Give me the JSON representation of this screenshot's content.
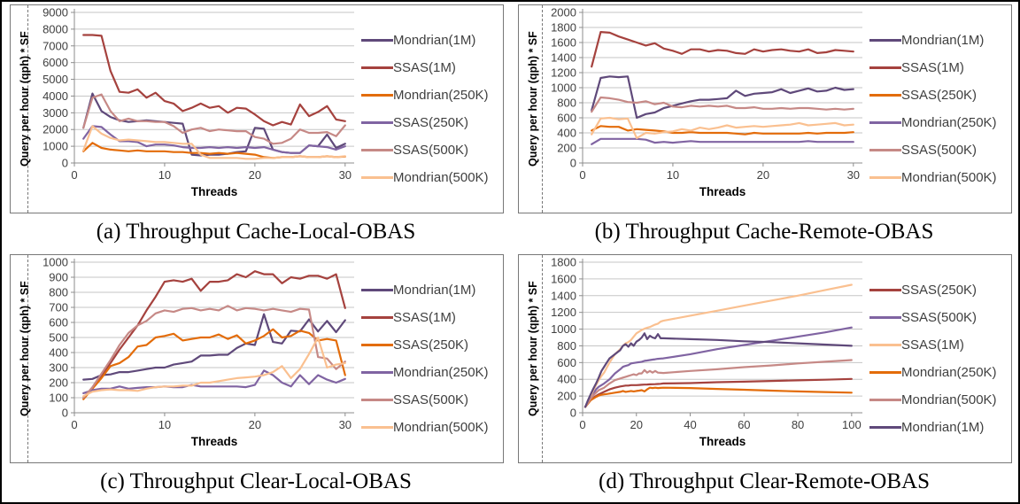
{
  "figure": {
    "xlabel": "Threads",
    "ylabel": "Query per hour (qph) * SF",
    "colors": {
      "dark_purple": "#5F497A",
      "dark_red": "#A5423E",
      "orange": "#E36C0A",
      "medium_purple": "#8064A2",
      "rose": "#C68986",
      "peach": "#FAC090"
    }
  },
  "chart_data": [
    {
      "type": "line",
      "caption": "(a) Throughput Cache-Local-OBAS",
      "xlabel": "Threads",
      "ylabel": "Query per hour (qph) * SF",
      "ylim": [
        0,
        9000
      ],
      "ystep": 1000,
      "xlim": [
        0,
        31
      ],
      "xticks": [
        0,
        10,
        20,
        30
      ],
      "grid": true,
      "legend_position": "right",
      "x": [
        1,
        2,
        3,
        4,
        5,
        6,
        7,
        8,
        9,
        10,
        11,
        12,
        13,
        14,
        15,
        16,
        17,
        18,
        19,
        20,
        21,
        22,
        23,
        24,
        25,
        26,
        27,
        28,
        29,
        30
      ],
      "series": [
        {
          "name": "Mondrian(1M)",
          "color": "#5F497A",
          "values": [
            2100,
            4150,
            3100,
            2750,
            2550,
            2450,
            2500,
            2550,
            2500,
            2450,
            2400,
            2350,
            500,
            450,
            500,
            500,
            550,
            650,
            700,
            2100,
            2050,
            800,
            650,
            600,
            600,
            1050,
            1000,
            1700,
            900,
            1150
          ]
        },
        {
          "name": "SSAS(1M)",
          "color": "#A5423E",
          "values": [
            7650,
            7650,
            7600,
            5500,
            4250,
            4200,
            4400,
            3900,
            4200,
            3700,
            3550,
            3100,
            3300,
            3550,
            3300,
            3400,
            3000,
            3300,
            3250,
            2900,
            2500,
            2250,
            2450,
            2300,
            3500,
            2800,
            3050,
            3400,
            2600,
            2500
          ]
        },
        {
          "name": "Mondrian(250K)",
          "color": "#E36C0A",
          "values": [
            700,
            1200,
            900,
            800,
            750,
            700,
            750,
            700,
            700,
            700,
            650,
            650,
            600,
            600,
            550,
            600,
            550,
            600,
            550,
            500,
            350,
            300,
            350,
            350,
            400,
            350,
            350,
            400,
            350,
            380
          ]
        },
        {
          "name": "SSAS(250K)",
          "color": "#8064A2",
          "values": [
            1450,
            2200,
            2150,
            1700,
            1300,
            1300,
            1250,
            1000,
            1100,
            1100,
            1050,
            950,
            900,
            900,
            950,
            900,
            950,
            900,
            950,
            900,
            950,
            800,
            650,
            600,
            600,
            1050,
            1000,
            950,
            800,
            1000
          ]
        },
        {
          "name": "SSAS(500K)",
          "color": "#C68986",
          "values": [
            2100,
            3900,
            4100,
            3100,
            2500,
            2650,
            2500,
            2500,
            2450,
            2450,
            2200,
            1800,
            2000,
            2100,
            1900,
            2000,
            1950,
            1900,
            1900,
            1550,
            1450,
            1150,
            1200,
            1450,
            2000,
            1800,
            1800,
            1850,
            1600,
            2250
          ]
        },
        {
          "name": "Mondrian(500K)",
          "color": "#FAC090",
          "values": [
            750,
            2200,
            1750,
            1500,
            1350,
            1400,
            1350,
            1300,
            1250,
            1250,
            1200,
            1150,
            1150,
            500,
            300,
            300,
            300,
            300,
            250,
            250,
            300,
            300,
            350,
            350,
            400,
            350,
            350,
            400,
            350,
            400
          ]
        }
      ]
    },
    {
      "type": "line",
      "caption": "(b) Throughput Cache-Remote-OBAS",
      "xlabel": "Threads",
      "ylabel": "Query per hour (qph) * SF",
      "ylim": [
        0,
        2000
      ],
      "ystep": 200,
      "xlim": [
        0,
        31
      ],
      "xticks": [
        0,
        10,
        20,
        30
      ],
      "grid": true,
      "legend_position": "right",
      "x": [
        1,
        2,
        3,
        4,
        5,
        6,
        7,
        8,
        9,
        10,
        11,
        12,
        13,
        14,
        15,
        16,
        17,
        18,
        19,
        20,
        21,
        22,
        23,
        24,
        25,
        26,
        27,
        28,
        29,
        30
      ],
      "series": [
        {
          "name": "Mondrian(1M)",
          "color": "#5F497A",
          "values": [
            700,
            1130,
            1150,
            1140,
            1150,
            600,
            650,
            670,
            730,
            760,
            790,
            820,
            840,
            840,
            850,
            860,
            960,
            890,
            920,
            930,
            940,
            980,
            930,
            960,
            990,
            950,
            960,
            1000,
            970,
            980
          ]
        },
        {
          "name": "SSAS(1M)",
          "color": "#A5423E",
          "values": [
            1280,
            1740,
            1730,
            1680,
            1640,
            1600,
            1560,
            1590,
            1520,
            1490,
            1450,
            1510,
            1510,
            1480,
            1500,
            1490,
            1460,
            1450,
            1510,
            1480,
            1500,
            1510,
            1490,
            1480,
            1510,
            1460,
            1470,
            1500,
            1490,
            1480
          ]
        },
        {
          "name": "SSAS(250K)",
          "color": "#E36C0A",
          "values": [
            430,
            490,
            480,
            480,
            430,
            450,
            440,
            430,
            420,
            400,
            400,
            410,
            400,
            400,
            400,
            400,
            390,
            380,
            400,
            390,
            390,
            390,
            390,
            390,
            400,
            390,
            400,
            400,
            400,
            410
          ]
        },
        {
          "name": "Mondrian(250K)",
          "color": "#8064A2",
          "values": [
            250,
            320,
            320,
            320,
            320,
            320,
            310,
            270,
            280,
            270,
            280,
            290,
            280,
            280,
            280,
            280,
            280,
            280,
            280,
            280,
            280,
            280,
            280,
            280,
            290,
            280,
            280,
            280,
            280,
            280
          ]
        },
        {
          "name": "SSAS(500K)",
          "color": "#C68986",
          "values": [
            680,
            870,
            860,
            840,
            810,
            800,
            820,
            780,
            800,
            750,
            740,
            760,
            750,
            760,
            750,
            760,
            730,
            730,
            740,
            720,
            720,
            730,
            720,
            730,
            730,
            720,
            710,
            720,
            710,
            720
          ]
        },
        {
          "name": "Mondrian(500K)",
          "color": "#FAC090",
          "values": [
            380,
            590,
            600,
            580,
            590,
            330,
            400,
            390,
            410,
            420,
            450,
            430,
            470,
            450,
            470,
            500,
            470,
            480,
            490,
            480,
            490,
            500,
            510,
            530,
            500,
            510,
            520,
            530,
            500,
            510
          ]
        }
      ]
    },
    {
      "type": "line",
      "caption": "(c) Throughput Clear-Local-OBAS",
      "xlabel": "Threads",
      "ylabel": "Query per hour (qph) * SF",
      "ylim": [
        0,
        1000
      ],
      "ystep": 100,
      "xlim": [
        0,
        31
      ],
      "xticks": [
        0,
        10,
        20,
        30
      ],
      "grid": true,
      "legend_position": "right",
      "x": [
        1,
        2,
        3,
        4,
        5,
        6,
        7,
        8,
        9,
        10,
        11,
        12,
        13,
        14,
        15,
        16,
        17,
        18,
        19,
        20,
        21,
        22,
        23,
        24,
        25,
        26,
        27,
        28,
        29,
        30
      ],
      "series": [
        {
          "name": "Mondrian(1M)",
          "color": "#5F497A",
          "values": [
            220,
            225,
            250,
            255,
            270,
            270,
            280,
            290,
            300,
            300,
            320,
            330,
            340,
            380,
            380,
            385,
            385,
            430,
            460,
            450,
            655,
            470,
            460,
            545,
            540,
            620,
            540,
            610,
            535,
            615
          ]
        },
        {
          "name": "SSAS(1M)",
          "color": "#A5423E",
          "values": [
            100,
            160,
            250,
            330,
            420,
            500,
            580,
            680,
            770,
            870,
            880,
            870,
            890,
            810,
            870,
            870,
            880,
            920,
            900,
            940,
            920,
            920,
            860,
            900,
            890,
            910,
            910,
            890,
            920,
            695
          ]
        },
        {
          "name": "SSAS(250K)",
          "color": "#E36C0A",
          "values": [
            90,
            160,
            230,
            310,
            330,
            370,
            440,
            450,
            500,
            510,
            525,
            480,
            490,
            500,
            500,
            520,
            490,
            515,
            460,
            480,
            510,
            555,
            500,
            510,
            545,
            530,
            480,
            490,
            480,
            250
          ]
        },
        {
          "name": "Mondrian(250K)",
          "color": "#8064A2",
          "values": [
            130,
            150,
            160,
            160,
            175,
            160,
            165,
            170,
            170,
            175,
            170,
            170,
            185,
            175,
            175,
            175,
            175,
            175,
            170,
            185,
            280,
            250,
            200,
            175,
            250,
            190,
            250,
            220,
            200,
            225
          ]
        },
        {
          "name": "SSAS(500K)",
          "color": "#C68986",
          "values": [
            100,
            170,
            260,
            350,
            450,
            530,
            580,
            610,
            660,
            680,
            670,
            690,
            695,
            680,
            690,
            680,
            710,
            680,
            695,
            690,
            680,
            690,
            680,
            670,
            690,
            685,
            370,
            360,
            290,
            340
          ]
        },
        {
          "name": "Mondrian(500K)",
          "color": "#FAC090",
          "values": [
            110,
            140,
            150,
            155,
            150,
            150,
            145,
            160,
            170,
            175,
            175,
            180,
            180,
            200,
            200,
            210,
            220,
            230,
            235,
            240,
            250,
            270,
            310,
            230,
            290,
            390,
            500,
            300,
            320,
            330
          ]
        }
      ]
    },
    {
      "type": "line",
      "caption": "(d) Throughput Clear-Remote-OBAS",
      "xlabel": "Threads",
      "ylabel": "Query per hour (qph) * SF",
      "ylim": [
        0,
        1800
      ],
      "ystep": 200,
      "xlim": [
        0,
        104
      ],
      "xticks": [
        0,
        20,
        40,
        60,
        80,
        100
      ],
      "grid": true,
      "legend_position": "right",
      "x": [
        1,
        2,
        3,
        4,
        5,
        6,
        7,
        8,
        9,
        10,
        12,
        14,
        15,
        16,
        17,
        18,
        19,
        20,
        21,
        22,
        23,
        24,
        25,
        26,
        27,
        28,
        29,
        30,
        40,
        50,
        60,
        70,
        80,
        90,
        100
      ],
      "series": [
        {
          "name": "SSAS(250K)",
          "color": "#A5423E",
          "values": [
            70,
            110,
            150,
            180,
            200,
            220,
            235,
            250,
            265,
            280,
            300,
            315,
            320,
            325,
            325,
            330,
            330,
            330,
            332,
            335,
            337,
            338,
            340,
            341,
            342,
            344,
            346,
            350,
            355,
            365,
            372,
            380,
            387,
            395,
            405
          ]
        },
        {
          "name": "SSAS(500K)",
          "color": "#8064A2",
          "values": [
            70,
            130,
            180,
            230,
            280,
            310,
            330,
            350,
            375,
            400,
            470,
            520,
            550,
            560,
            570,
            590,
            595,
            600,
            605,
            610,
            620,
            625,
            630,
            635,
            640,
            645,
            648,
            650,
            700,
            760,
            810,
            860,
            910,
            960,
            1020
          ]
        },
        {
          "name": "SSAS(1M)",
          "color": "#FAC090",
          "values": [
            70,
            140,
            200,
            270,
            330,
            390,
            440,
            480,
            540,
            600,
            700,
            760,
            800,
            830,
            845,
            870,
            910,
            950,
            970,
            990,
            1005,
            1015,
            1025,
            1040,
            1055,
            1065,
            1090,
            1100,
            1160,
            1220,
            1280,
            1340,
            1400,
            1465,
            1530
          ]
        },
        {
          "name": "Mondrian(250K)",
          "color": "#E36C0A",
          "values": [
            70,
            110,
            150,
            170,
            190,
            205,
            215,
            220,
            225,
            230,
            240,
            250,
            260,
            250,
            255,
            260,
            255,
            260,
            265,
            270,
            255,
            280,
            300,
            295,
            300,
            295,
            298,
            300,
            295,
            285,
            275,
            265,
            255,
            248,
            240
          ]
        },
        {
          "name": "Mondrian(500K)",
          "color": "#C68986",
          "values": [
            70,
            120,
            170,
            210,
            240,
            270,
            285,
            300,
            325,
            350,
            390,
            410,
            420,
            430,
            440,
            450,
            460,
            450,
            470,
            470,
            510,
            480,
            500,
            480,
            500,
            480,
            478,
            475,
            500,
            520,
            545,
            565,
            590,
            610,
            630
          ]
        },
        {
          "name": "Mondrian(1M)",
          "color": "#5F497A",
          "values": [
            70,
            150,
            220,
            290,
            350,
            420,
            500,
            550,
            600,
            650,
            700,
            750,
            800,
            820,
            790,
            830,
            800,
            850,
            870,
            900,
            950,
            880,
            920,
            900,
            890,
            940,
            890,
            890,
            880,
            870,
            855,
            845,
            830,
            815,
            800
          ]
        }
      ]
    }
  ]
}
